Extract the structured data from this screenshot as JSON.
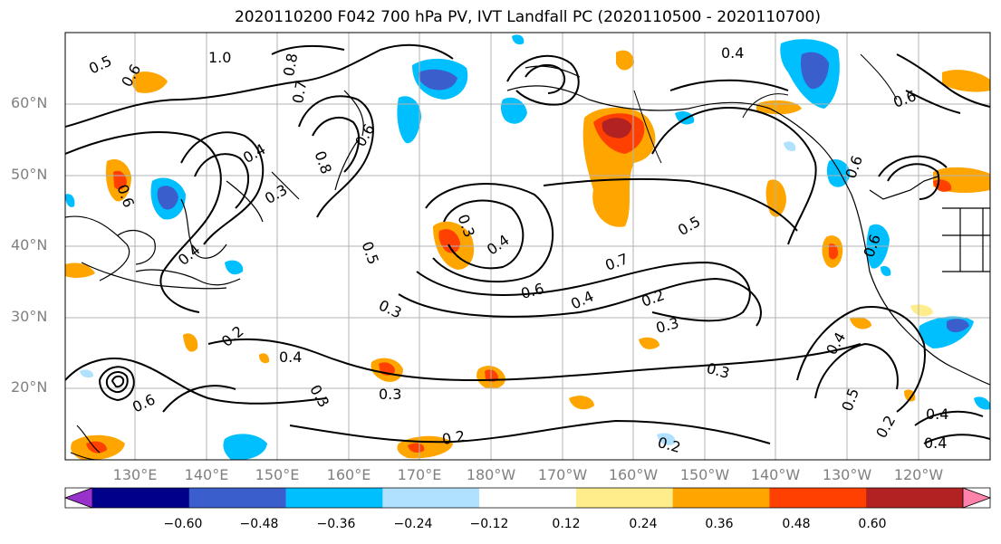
{
  "title": "2020110200 F042 700 hPa PV, IVT Landfall PC (2020110500 - 2020110700)",
  "latitude_labels": [
    "60°N",
    "50°N",
    "40°N",
    "30°N",
    "20°N"
  ],
  "longitude_labels": [
    "130°E",
    "140°E",
    "150°E",
    "160°E",
    "170°E",
    "180°W",
    "170°W",
    "160°W",
    "150°W",
    "140°W",
    "130°W",
    "120°W"
  ],
  "contour_labels": [
    "0.5",
    "0.6",
    "1.0",
    "0.8",
    "0.7",
    "0.6",
    "0.4",
    "0.3",
    "0.8",
    "0.6",
    "0.5",
    "0.4",
    "0.4",
    "0.3",
    "0.7",
    "0.6",
    "0.4",
    "0.2",
    "0.3",
    "0.3",
    "0.2",
    "0.4",
    "0.3",
    "0.3",
    "0.2",
    "0.2",
    "0.5",
    "0.4",
    "0.3",
    "0.4",
    "0.2",
    "0.6",
    "0.6",
    "0.4",
    "0.5",
    "0.6",
    "0.4",
    "0.6"
  ],
  "colorbar": {
    "tick_labels": [
      "−0.60",
      "−0.48",
      "−0.36",
      "−0.24",
      "−0.12",
      "0.12",
      "0.24",
      "0.36",
      "0.48",
      "0.60"
    ],
    "colors": [
      "#9932cc",
      "#00008b",
      "#3a5fcd",
      "#00bfff",
      "#b0e2ff",
      "#ffffff",
      "#ffec8b",
      "#ffa500",
      "#ff4000",
      "#b22222",
      "#ff82ab"
    ]
  }
}
